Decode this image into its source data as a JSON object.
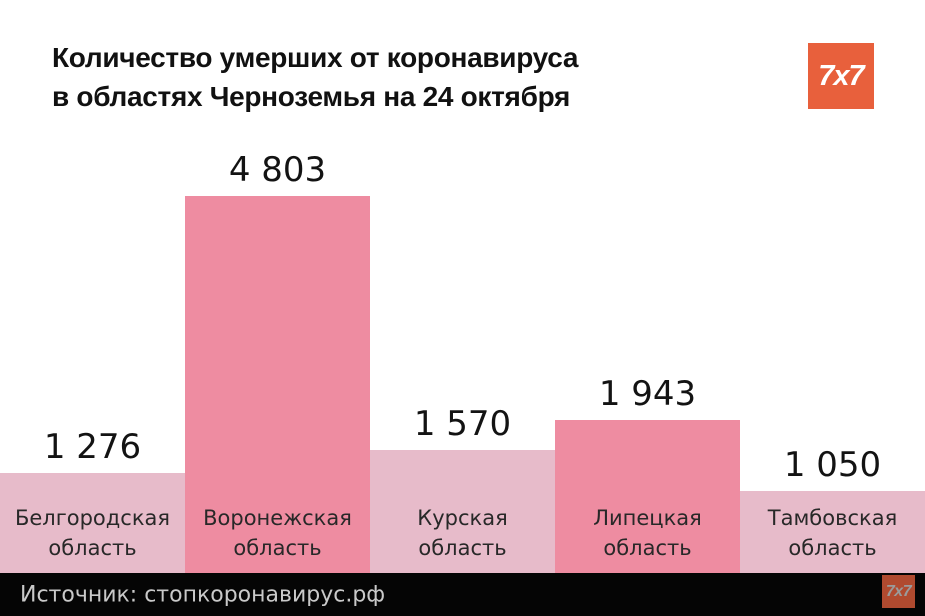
{
  "header": {
    "title_line1": "Количество умерших от коронавируса",
    "title_line2": "в областях Черноземья на 24 октября",
    "logo_text": "7x7"
  },
  "chart_data": {
    "type": "bar",
    "title": "Количество умерших от коронавируса в областях Черноземья на 24 октября",
    "categories": [
      "Белгородская область",
      "Воронежская область",
      "Курская область",
      "Липецкая область",
      "Тамбовская область"
    ],
    "values": [
      1276,
      4803,
      1570,
      1943,
      1050
    ],
    "value_labels": [
      "1 276",
      "4 803",
      "1 570",
      "1 943",
      "1 050"
    ],
    "bar_colors": [
      "#E7BBCA",
      "#EE8CA1",
      "#E7BBCA",
      "#EE8CA1",
      "#E7BBCA"
    ],
    "ylim": [
      0,
      4803
    ],
    "grid": false,
    "legend_position": "none",
    "xlabel": "",
    "ylabel": ""
  },
  "footer": {
    "source_text": "Источник: стопкоронавирус.рф",
    "logo_text": "7x7"
  },
  "colors": {
    "accent_orange": "#E8603C",
    "footer_logo_orange": "#B04A2F",
    "bar_light": "#E7BBCA",
    "bar_dark": "#EE8CA1",
    "footer_bg": "#050505",
    "footer_text": "#C9C9C9",
    "title_text": "#111111"
  }
}
